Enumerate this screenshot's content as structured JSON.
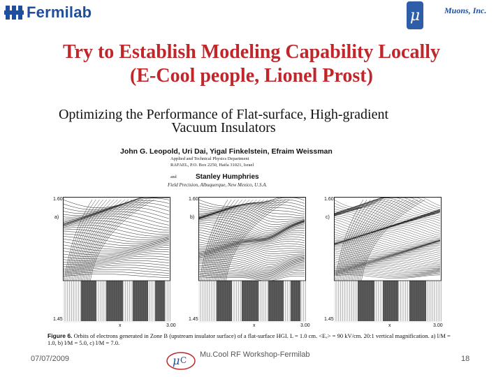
{
  "header": {
    "logo_text": "Fermilab",
    "mu_symbol": "μ",
    "company": "Muons, Inc."
  },
  "slide": {
    "title_line1": "Try to Establish Modeling Capability Locally",
    "title_line2": "(E-Cool people, Lionel Prost)"
  },
  "paper": {
    "title_line1": "Optimizing the Performance of Flat-surface, High-gradient",
    "title_line2": "Vacuum Insulators",
    "authors": "John G. Leopold, Uri Dai, Yigal Finkelstein, Efraim Weissman",
    "affiliation1": "Applied and Technical Physics Department",
    "affiliation2": "RAFAEL, P.O. Box 2250, Haifa 31021, Israel",
    "and": "and",
    "author2": "Stanley Humphries",
    "affiliation3": "Field Precision, Albuquerque, New Mexico, U.S.A.",
    "panels": [
      {
        "label": "a)",
        "ytop": "1.60",
        "ybottom": "1.45",
        "xmid": "x",
        "xright": "3.00"
      },
      {
        "label": "b)",
        "ytop": "1.60",
        "ybottom": "1.45",
        "xmid": "x",
        "xright": "3.00"
      },
      {
        "label": "c)",
        "ytop": "1.60",
        "ybottom": "1.45",
        "xmid": "x",
        "xright": "3.00"
      }
    ],
    "caption_fig": "Figure 6.",
    "caption_text": " Orbits of electrons generated in Zone B (upstream insulator surface) of a flat-surface HGI. L = 1.0 cm. <Eₓ> = 90 kV/cm. 20:1 vertical magnification. a) l/M = 1.0, b) l/M = 5.0, c) l/M = 7.0."
  },
  "footer": {
    "date": "07/07/2009",
    "event": "Mu.Cool RF Workshop-Fermilab",
    "slide_number": "18"
  },
  "colors": {
    "title_red": "#c0262a",
    "brand_blue": "#1f4e9c",
    "mu_box": "#2f5ea8"
  }
}
